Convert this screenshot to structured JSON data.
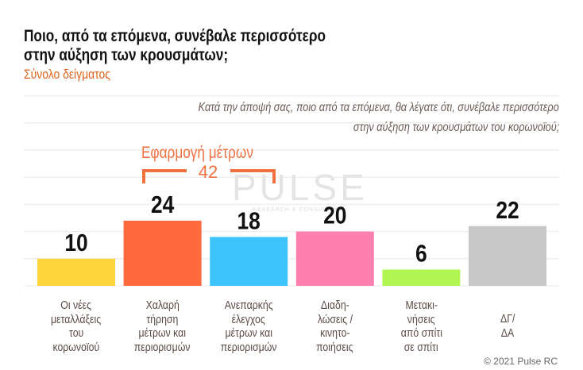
{
  "chart_data": {
    "type": "bar",
    "title": "Ποιο, από τα επόμενα, συνέβαλε περισσότερο στην αύξηση των κρουσμάτων;",
    "title_lines": [
      "Ποιο, από τα επόμενα, συνέβαλε περισσότερο",
      "στην αύξηση των κρουσμάτων;"
    ],
    "subtitle": "Σύνολο δείγματος",
    "question_lines": [
      "Κατά την άποψή σας, ποιο από τα επόμενα, θα λέγατε ότι, συνέβαλε περισσότερο",
      "στην αύξηση των κρουσμάτων του κορωνοϊού;"
    ],
    "categories": [
      [
        "Οι νέες",
        "μεταλλάξεις",
        "του",
        "κορωνοϊού"
      ],
      [
        "Χαλαρή",
        "τήρηση",
        "μέτρων και",
        "περιορισμών"
      ],
      [
        "Ανεπαρκής",
        "έλεγχος",
        "μέτρων και",
        "περιορισμών"
      ],
      [
        "Διαδη-",
        "λώσεις /",
        "κινητο-",
        "ποιήσεις"
      ],
      [
        "Μετακι-",
        "νήσεις",
        "από σπίτι",
        "σε σπίτι"
      ],
      [
        "ΔΓ/",
        "ΔΑ"
      ]
    ],
    "values": [
      10,
      24,
      18,
      20,
      6,
      22
    ],
    "data_labels": [
      "10",
      "24",
      "18",
      "20",
      "6",
      "22"
    ],
    "colors": [
      "#fdd53a",
      "#ff6a3d",
      "#3ec4fb",
      "#ff7fae",
      "#b0f552",
      "#c8c8c8"
    ],
    "ylim": [
      0,
      70
    ],
    "grid": true,
    "annotation": {
      "label": "Εφαρμογή μέτρων",
      "value": "42",
      "spans": [
        1,
        2
      ],
      "color": "#f07040"
    },
    "watermark": {
      "text": "PULSE",
      "tagline": "RESEARCH & CONSULTING"
    },
    "copyright": "© 2021 Pulse RC"
  }
}
